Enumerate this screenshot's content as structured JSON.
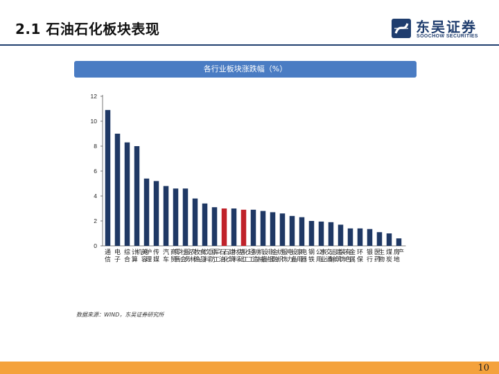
{
  "header": {
    "title": "2.1 石油石化板块表现",
    "logo_cn": "东吴证券",
    "logo_en": "SOOCHOW SECURITIES"
  },
  "colors": {
    "bar_default": "#1f3864",
    "bar_highlight": "#c0222a",
    "banner": "#4a7cc3",
    "footer": "#f4a23c"
  },
  "chart_data": {
    "type": "bar",
    "title": "各行业板块涨跌幅（%）",
    "xlabel": "",
    "ylabel": "",
    "ylim": [
      0,
      12
    ],
    "yticks": [
      0,
      2,
      4,
      6,
      8,
      10,
      12
    ],
    "categories": [
      "通信",
      "电子",
      "综合",
      "计算机",
      "美容护理",
      "传媒",
      "汽车",
      "商贸零售",
      "社会服务",
      "农林牧渔",
      "食品饮料",
      "国防军工",
      "石油石化",
      "建筑材料",
      "基础化工",
      "轻工制造",
      "机械设备",
      "非银金融",
      "纺织服饰",
      "电力设备",
      "家用电器",
      "钢铁",
      "公用事业",
      "交通运输",
      "建筑装饰",
      "有色金属",
      "环保",
      "银行",
      "医药生物",
      "煤炭",
      "房地产"
    ],
    "values": [
      10.9,
      9.0,
      8.3,
      8.0,
      5.4,
      5.2,
      4.8,
      4.6,
      4.6,
      3.8,
      3.4,
      3.1,
      3.0,
      3.0,
      2.9,
      2.9,
      2.8,
      2.7,
      2.6,
      2.4,
      2.3,
      2.0,
      1.95,
      1.9,
      1.7,
      1.4,
      1.4,
      1.35,
      1.1,
      1.0,
      0.6
    ],
    "highlight": [
      "石油石化",
      "基础化工"
    ]
  },
  "footer": {
    "source": "数据来源：WIND，东吴证券研究所",
    "page_number": "10"
  }
}
